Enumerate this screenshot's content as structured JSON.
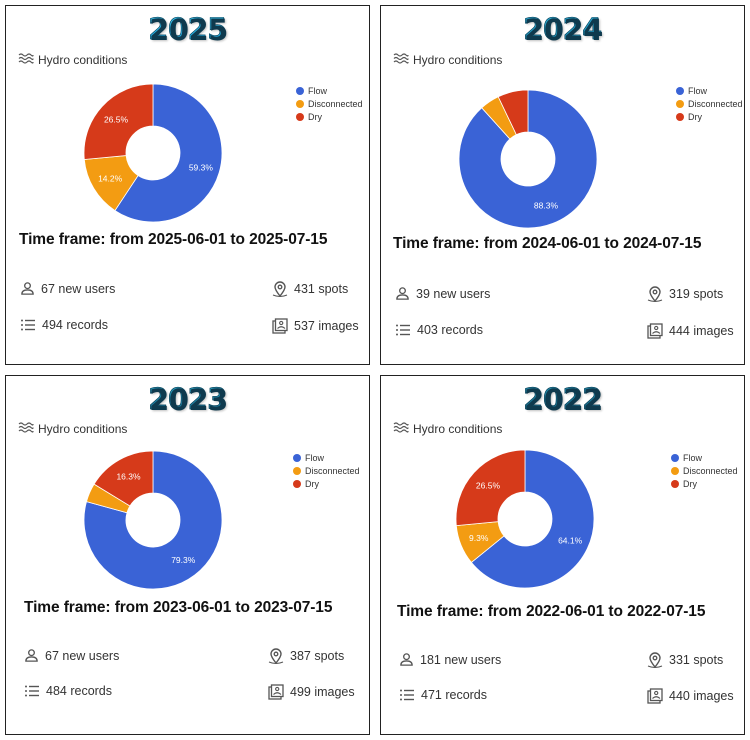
{
  "colors": {
    "flow": "#3a63d6",
    "disconnected": "#f39c12",
    "dry": "#d63a1a",
    "year_light": "#1ab0e0",
    "year_dark": "#1a6f8a"
  },
  "chart_data": [
    {
      "type": "pie",
      "title": "2025",
      "subtitle": "Hydro conditions",
      "categories": [
        "Flow",
        "Disconnected",
        "Dry"
      ],
      "values": [
        59.3,
        14.2,
        26.5
      ],
      "data_labels": [
        "59.3%",
        "14.2%",
        "26.5%"
      ],
      "legend": "top-right",
      "time_frame": "Time frame: from 2025-06-01 to 2025-07-15",
      "stats": {
        "users": "67 new users",
        "spots": "431 spots",
        "records": "494 records",
        "images": "537 images"
      }
    },
    {
      "type": "pie",
      "title": "2024",
      "subtitle": "Hydro conditions",
      "categories": [
        "Flow",
        "Disconnected",
        "Dry"
      ],
      "values": [
        88.3,
        4.6,
        7.1
      ],
      "data_labels": [
        "88.3%",
        "",
        ""
      ],
      "legend": "top-right",
      "time_frame": "Time frame: from 2024-06-01 to 2024-07-15",
      "stats": {
        "users": "39 new users",
        "spots": "319 spots",
        "records": "403 records",
        "images": "444 images"
      }
    },
    {
      "type": "pie",
      "title": "2023",
      "subtitle": "Hydro conditions",
      "categories": [
        "Flow",
        "Disconnected",
        "Dry"
      ],
      "values": [
        79.3,
        4.4,
        16.3
      ],
      "data_labels": [
        "79.3%",
        "",
        "16.3%"
      ],
      "legend": "top-right",
      "time_frame": "Time frame: from 2023-06-01 to 2023-07-15",
      "stats": {
        "users": "67 new users",
        "spots": "387 spots",
        "records": "484 records",
        "images": "499 images"
      }
    },
    {
      "type": "pie",
      "title": "2022",
      "subtitle": "Hydro conditions",
      "categories": [
        "Flow",
        "Disconnected",
        "Dry"
      ],
      "values": [
        64.1,
        9.3,
        26.5
      ],
      "data_labels": [
        "64.1%",
        "9.3%",
        "26.5%"
      ],
      "legend": "top-right",
      "time_frame": "Time frame: from 2022-06-01 to 2022-07-15",
      "stats": {
        "users": "181 new users",
        "spots": "331 spots",
        "records": "471 records",
        "images": "440 images"
      }
    }
  ]
}
